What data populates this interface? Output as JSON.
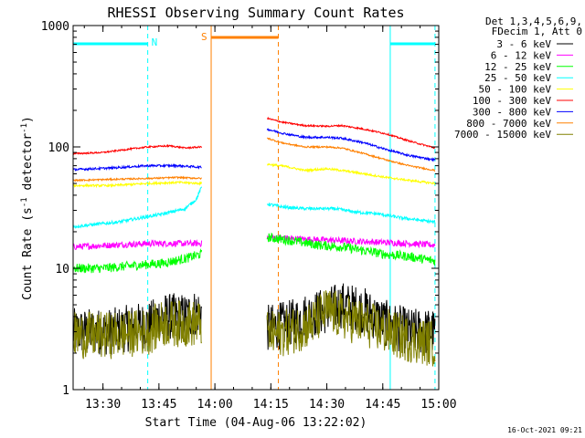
{
  "chart_data": {
    "type": "line",
    "title": "RHESSI Observing Summary Count Rates",
    "xlabel": "Start Time (04-Aug-06 13:22:02)",
    "ylabel": "Count Rate (s",
    "ylabel_sup1": "-1",
    "ylabel_mid": " detector",
    "ylabel_sup2": "-1",
    "ylabel_end": ")",
    "x_unit": "minutes after 13:22",
    "xlim": [
      0,
      98
    ],
    "ylim": [
      1,
      1000
    ],
    "yscale": "log",
    "x_ticks": [
      {
        "v": 8,
        "label": "13:30"
      },
      {
        "v": 23,
        "label": "13:45"
      },
      {
        "v": 38,
        "label": "14:00"
      },
      {
        "v": 53,
        "label": "14:15"
      },
      {
        "v": 68,
        "label": "14:30"
      },
      {
        "v": 83,
        "label": "14:45"
      },
      {
        "v": 98,
        "label": "15:00"
      }
    ],
    "y_ticks": [
      {
        "v": 1,
        "label": "1"
      },
      {
        "v": 10,
        "label": "10"
      },
      {
        "v": 100,
        "label": "100"
      },
      {
        "v": 1000,
        "label": "1000"
      }
    ],
    "legend_header": [
      "Det 1,3,4,5,6,9,",
      "FDecim 1, Att 0"
    ],
    "legend_position": "right",
    "series": [
      {
        "name": "3 - 6 keV",
        "color": "#000000",
        "noise": 0.45,
        "data": [
          [
            0,
            3
          ],
          [
            10,
            3
          ],
          [
            21,
            3.5
          ],
          [
            23,
            4
          ],
          [
            30,
            4
          ],
          [
            34.5,
            4.5
          ]
        ],
        "data2": [
          [
            52,
            3.2
          ],
          [
            58,
            3.5
          ],
          [
            62,
            4
          ],
          [
            68,
            4.5
          ],
          [
            72,
            5
          ],
          [
            78,
            4.5
          ],
          [
            84,
            3.5
          ],
          [
            90,
            3
          ],
          [
            97,
            3
          ]
        ]
      },
      {
        "name": "6 - 12 keV",
        "color": "#ff00ff",
        "noise": 0.06,
        "data": [
          [
            0,
            15
          ],
          [
            10,
            15.5
          ],
          [
            20,
            16
          ],
          [
            34.5,
            16
          ]
        ],
        "data2": [
          [
            52,
            18
          ],
          [
            60,
            17.5
          ],
          [
            70,
            17
          ],
          [
            80,
            16.5
          ],
          [
            90,
            16
          ],
          [
            97,
            15.5
          ]
        ]
      },
      {
        "name": "12 - 25 keV",
        "color": "#00ff00",
        "noise": 0.09,
        "data": [
          [
            0,
            10
          ],
          [
            8,
            10
          ],
          [
            16,
            10.5
          ],
          [
            24,
            11
          ],
          [
            30,
            12
          ],
          [
            34,
            13
          ],
          [
            34.5,
            13
          ]
        ],
        "data2": [
          [
            52,
            18
          ],
          [
            58,
            17
          ],
          [
            66,
            15.5
          ],
          [
            72,
            15
          ],
          [
            78,
            14
          ],
          [
            84,
            13
          ],
          [
            90,
            12.5
          ],
          [
            97,
            11.5
          ]
        ]
      },
      {
        "name": "25 - 50 keV",
        "color": "#00ffff",
        "noise": 0.03,
        "data": [
          [
            0,
            22
          ],
          [
            6,
            23
          ],
          [
            12,
            24
          ],
          [
            18,
            26
          ],
          [
            24,
            28
          ],
          [
            30,
            31
          ],
          [
            33,
            37
          ],
          [
            34.5,
            47
          ]
        ],
        "data2": [
          [
            52,
            34
          ],
          [
            56,
            32
          ],
          [
            62,
            31
          ],
          [
            70,
            31
          ],
          [
            76,
            29
          ],
          [
            82,
            28
          ],
          [
            88,
            26
          ],
          [
            97,
            24
          ]
        ]
      },
      {
        "name": "50 - 100 keV",
        "color": "#ffff00",
        "noise": 0.02,
        "data": [
          [
            0,
            48
          ],
          [
            10,
            48
          ],
          [
            20,
            50
          ],
          [
            28,
            51
          ],
          [
            34.5,
            50
          ]
        ],
        "data2": [
          [
            52,
            72
          ],
          [
            57,
            69
          ],
          [
            62,
            64
          ],
          [
            68,
            66
          ],
          [
            72,
            64
          ],
          [
            78,
            60
          ],
          [
            84,
            56
          ],
          [
            90,
            53
          ],
          [
            97,
            50
          ]
        ]
      },
      {
        "name": "100 - 300 keV",
        "color": "#ff0000",
        "noise": 0.015,
        "data": [
          [
            0,
            88
          ],
          [
            8,
            90
          ],
          [
            14,
            95
          ],
          [
            20,
            100
          ],
          [
            26,
            102
          ],
          [
            30,
            98
          ],
          [
            34.5,
            100
          ]
        ],
        "data2": [
          [
            52,
            172
          ],
          [
            56,
            160
          ],
          [
            62,
            150
          ],
          [
            68,
            148
          ],
          [
            72,
            150
          ],
          [
            78,
            140
          ],
          [
            84,
            128
          ],
          [
            90,
            112
          ],
          [
            97,
            98
          ]
        ]
      },
      {
        "name": "300 - 800 keV",
        "color": "#0000ff",
        "noise": 0.02,
        "data": [
          [
            0,
            65
          ],
          [
            10,
            67
          ],
          [
            20,
            70
          ],
          [
            28,
            70
          ],
          [
            34.5,
            68
          ]
        ],
        "data2": [
          [
            52,
            140
          ],
          [
            56,
            130
          ],
          [
            62,
            120
          ],
          [
            68,
            120
          ],
          [
            72,
            118
          ],
          [
            78,
            108
          ],
          [
            84,
            95
          ],
          [
            90,
            85
          ],
          [
            97,
            78
          ]
        ]
      },
      {
        "name": "800 - 7000 keV",
        "color": "#ff8000",
        "noise": 0.015,
        "data": [
          [
            0,
            53
          ],
          [
            10,
            54
          ],
          [
            20,
            55
          ],
          [
            28,
            56
          ],
          [
            34.5,
            55
          ]
        ],
        "data2": [
          [
            52,
            118
          ],
          [
            56,
            108
          ],
          [
            62,
            100
          ],
          [
            68,
            100
          ],
          [
            72,
            98
          ],
          [
            78,
            88
          ],
          [
            84,
            78
          ],
          [
            90,
            70
          ],
          [
            97,
            64
          ]
        ]
      },
      {
        "name": "7000 - 15000 keV",
        "color": "#808000",
        "noise": 0.45,
        "data": [
          [
            0,
            2.8
          ],
          [
            10,
            2.8
          ],
          [
            20,
            3
          ],
          [
            24,
            3.5
          ],
          [
            30,
            3.5
          ],
          [
            34.5,
            3.5
          ]
        ],
        "data2": [
          [
            52,
            2.8
          ],
          [
            58,
            3
          ],
          [
            64,
            3.5
          ],
          [
            68,
            4.5
          ],
          [
            72,
            4
          ],
          [
            78,
            3.5
          ],
          [
            84,
            3
          ],
          [
            90,
            2.6
          ],
          [
            97,
            2.4
          ]
        ]
      }
    ],
    "saa_label": "S",
    "night_label": "N",
    "night_intervals": [
      [
        0,
        20
      ],
      [
        85,
        97
      ]
    ],
    "saa_interval": [
      37,
      55
    ],
    "attenuator_marks": [
      0,
      20,
      85,
      97
    ]
  },
  "footer": {
    "timestamp": "16-Oct-2021 09:21"
  }
}
